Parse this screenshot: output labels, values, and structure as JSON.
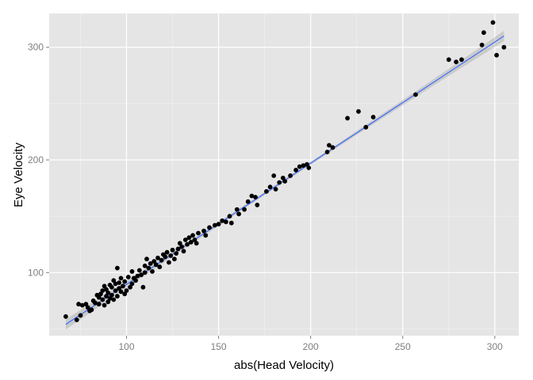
{
  "chart_data": {
    "type": "scatter",
    "title": "",
    "xlabel": "abs(Head Velocity)",
    "ylabel": "Eye Velocity",
    "xlim": [
      58,
      313
    ],
    "ylim": [
      44,
      330
    ],
    "x_ticks": [
      100,
      150,
      200,
      250,
      300
    ],
    "y_ticks": [
      100,
      200,
      300
    ],
    "grid": true,
    "background": "#e5e5e5",
    "point_color": "#000000",
    "fit_line": {
      "method": "linear",
      "color": "#3366ff",
      "band_color": "#999999",
      "x": [
        67,
        305
      ],
      "y": [
        54,
        310
      ]
    },
    "points": [
      [
        67,
        61
      ],
      [
        73,
        58
      ],
      [
        74,
        72
      ],
      [
        75,
        62
      ],
      [
        76,
        71
      ],
      [
        78,
        72
      ],
      [
        79,
        69
      ],
      [
        80,
        66
      ],
      [
        81,
        67
      ],
      [
        82,
        75
      ],
      [
        83,
        73
      ],
      [
        84,
        80
      ],
      [
        85,
        72
      ],
      [
        85,
        78
      ],
      [
        86,
        81
      ],
      [
        87,
        76
      ],
      [
        87,
        84
      ],
      [
        88,
        71
      ],
      [
        88,
        88
      ],
      [
        89,
        79
      ],
      [
        89,
        85
      ],
      [
        90,
        82
      ],
      [
        90,
        74
      ],
      [
        91,
        89
      ],
      [
        91,
        77
      ],
      [
        92,
        80
      ],
      [
        92,
        87
      ],
      [
        93,
        93
      ],
      [
        93,
        76
      ],
      [
        94,
        84
      ],
      [
        94,
        90
      ],
      [
        95,
        79
      ],
      [
        95,
        104
      ],
      [
        96,
        86
      ],
      [
        96,
        91
      ],
      [
        97,
        83
      ],
      [
        97,
        95
      ],
      [
        98,
        88
      ],
      [
        99,
        81
      ],
      [
        99,
        92
      ],
      [
        100,
        84
      ],
      [
        101,
        96
      ],
      [
        102,
        87
      ],
      [
        103,
        90
      ],
      [
        103,
        101
      ],
      [
        104,
        95
      ],
      [
        105,
        93
      ],
      [
        106,
        97
      ],
      [
        107,
        102
      ],
      [
        108,
        98
      ],
      [
        109,
        87
      ],
      [
        110,
        106
      ],
      [
        110,
        100
      ],
      [
        111,
        112
      ],
      [
        112,
        104
      ],
      [
        113,
        108
      ],
      [
        114,
        101
      ],
      [
        115,
        110
      ],
      [
        116,
        107
      ],
      [
        117,
        113
      ],
      [
        118,
        105
      ],
      [
        119,
        111
      ],
      [
        120,
        116
      ],
      [
        121,
        114
      ],
      [
        122,
        118
      ],
      [
        123,
        109
      ],
      [
        124,
        115
      ],
      [
        125,
        120
      ],
      [
        126,
        112
      ],
      [
        127,
        117
      ],
      [
        128,
        121
      ],
      [
        129,
        126
      ],
      [
        130,
        123
      ],
      [
        131,
        119
      ],
      [
        132,
        129
      ],
      [
        133,
        125
      ],
      [
        134,
        131
      ],
      [
        135,
        127
      ],
      [
        136,
        133
      ],
      [
        137,
        129
      ],
      [
        138,
        126
      ],
      [
        139,
        135
      ],
      [
        142,
        137
      ],
      [
        143,
        133
      ],
      [
        145,
        140
      ],
      [
        148,
        142
      ],
      [
        150,
        143
      ],
      [
        152,
        146
      ],
      [
        154,
        145
      ],
      [
        156,
        150
      ],
      [
        157,
        144
      ],
      [
        160,
        156
      ],
      [
        161,
        152
      ],
      [
        164,
        156
      ],
      [
        166,
        163
      ],
      [
        168,
        168
      ],
      [
        170,
        167
      ],
      [
        171,
        160
      ],
      [
        176,
        172
      ],
      [
        178,
        176
      ],
      [
        180,
        186
      ],
      [
        181,
        174
      ],
      [
        183,
        180
      ],
      [
        185,
        184
      ],
      [
        186,
        181
      ],
      [
        189,
        186
      ],
      [
        192,
        191
      ],
      [
        194,
        194
      ],
      [
        196,
        195
      ],
      [
        198,
        196
      ],
      [
        199,
        193
      ],
      [
        209,
        207
      ],
      [
        210,
        213
      ],
      [
        212,
        211
      ],
      [
        220,
        237
      ],
      [
        226,
        243
      ],
      [
        230,
        229
      ],
      [
        234,
        238
      ],
      [
        257,
        258
      ],
      [
        275,
        289
      ],
      [
        279,
        287
      ],
      [
        282,
        289
      ],
      [
        293,
        302
      ],
      [
        294,
        313
      ],
      [
        299,
        322
      ],
      [
        301,
        293
      ],
      [
        305,
        300
      ]
    ]
  }
}
